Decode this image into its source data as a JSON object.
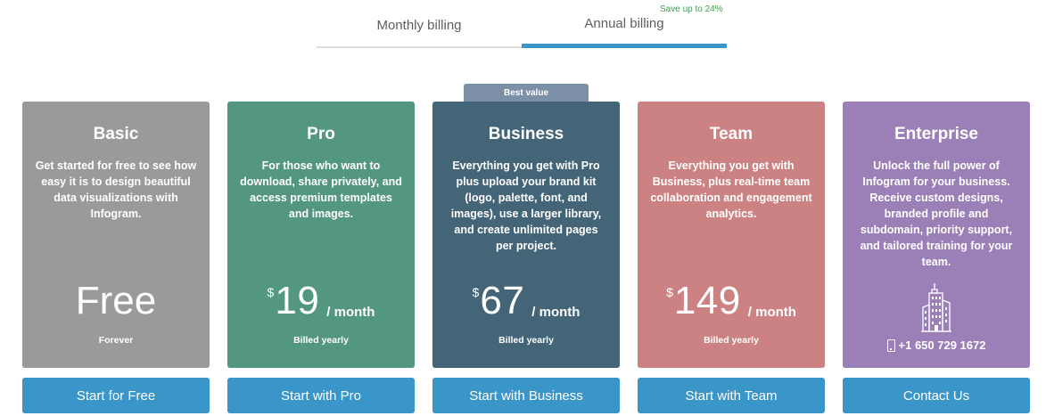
{
  "billing": {
    "monthly_label": "Monthly billing",
    "annual_label": "Annual billing",
    "save_note": "Save up to 24%",
    "selected": "annual"
  },
  "colors": {
    "accent": "#3a95c9",
    "basic": "#9a9a9a",
    "pro": "#53977f",
    "business": "#436577",
    "team": "#cc8282",
    "enterprise": "#9a80b7",
    "save": "#3aa14f"
  },
  "plans": {
    "basic": {
      "title": "Basic",
      "description": "Get started for free to see how easy it is to design beautiful data visualizations with Infogram.",
      "price": "Free",
      "note": "Forever",
      "cta": "Start for Free"
    },
    "pro": {
      "title": "Pro",
      "description": "For those who want to download, share privately, and access premium templates and images.",
      "currency": "$",
      "price": "19",
      "period": "/ month",
      "note": "Billed yearly",
      "cta": "Start with Pro"
    },
    "business": {
      "badge": "Best value",
      "title": "Business",
      "description": "Everything you get with Pro plus upload your brand kit (logo, palette, font, and images), use a larger library, and create unlimited pages per project.",
      "currency": "$",
      "price": "67",
      "period": "/ month",
      "note": "Billed yearly",
      "cta": "Start with Business"
    },
    "team": {
      "title": "Team",
      "description": "Everything you get with Business, plus real-time team collaboration and engagement analytics.",
      "currency": "$",
      "price": "149",
      "period": "/ month",
      "note": "Billed yearly",
      "cta": "Start with Team"
    },
    "enterprise": {
      "title": "Enterprise",
      "description": "Unlock the full power of Infogram for your business. Receive custom designs, branded profile and subdomain, priority support, and tailored training for your team.",
      "icon": "building-icon",
      "phone_icon": "phone-icon",
      "phone": "+1 650 729 1672",
      "cta": "Contact Us"
    }
  }
}
